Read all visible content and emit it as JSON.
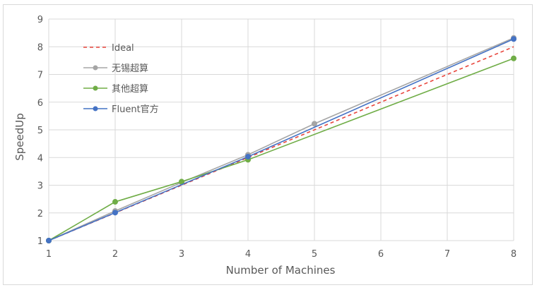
{
  "chart_data": {
    "type": "line",
    "xlabel": "Number of Machines",
    "ylabel": "SpeedUp",
    "x": [
      1,
      2,
      3,
      4,
      5,
      6,
      7,
      8
    ],
    "xlim": [
      1,
      8
    ],
    "ylim": [
      1,
      9
    ],
    "grid": true,
    "legend_position": "top-left",
    "series": [
      {
        "name": "Ideal",
        "style": "dashed",
        "color": "#e8453c",
        "markers": false,
        "x": [
          1,
          2,
          3,
          4,
          5,
          6,
          7,
          8
        ],
        "y": [
          1,
          2,
          3,
          4,
          5,
          6,
          7,
          8
        ]
      },
      {
        "name": "无锡超算",
        "style": "solid",
        "color": "#a5a5a5",
        "markers": true,
        "x": [
          1,
          2,
          3,
          4,
          5,
          8
        ],
        "y": [
          1,
          2.07,
          3.1,
          4.1,
          5.22,
          8.32
        ]
      },
      {
        "name": "其他超算",
        "style": "solid",
        "color": "#70ad47",
        "markers": true,
        "x": [
          1,
          2,
          3,
          4,
          8
        ],
        "y": [
          1,
          2.4,
          3.13,
          3.92,
          7.58
        ]
      },
      {
        "name": "Fluent官方",
        "style": "solid",
        "color": "#4472c4",
        "markers": true,
        "x": [
          1,
          2,
          4,
          8
        ],
        "y": [
          1,
          2.01,
          4.03,
          8.28
        ]
      }
    ]
  }
}
